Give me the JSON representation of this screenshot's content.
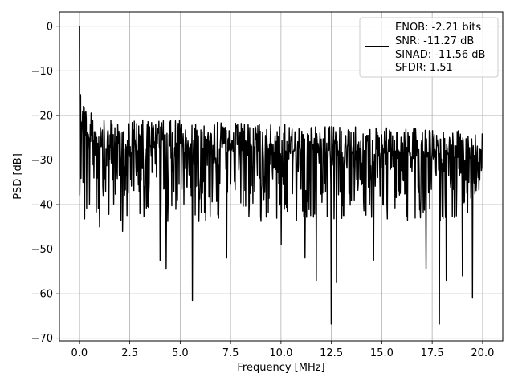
{
  "chart_data": {
    "type": "line",
    "title": "",
    "xlabel": "Frequency [MHz]",
    "ylabel": "PSD [dB]",
    "xlim": [
      -0.99,
      21.0
    ],
    "ylim": [
      -70.6,
      3.2
    ],
    "xticks": [
      0.0,
      2.5,
      5.0,
      7.5,
      10.0,
      12.5,
      15.0,
      17.5,
      20.0
    ],
    "xtick_labels": [
      "0.0",
      "2.5",
      "5.0",
      "7.5",
      "10.0",
      "12.5",
      "15.0",
      "17.5",
      "20.0"
    ],
    "yticks": [
      0,
      -10,
      -20,
      -30,
      -40,
      -50,
      -60,
      -70
    ],
    "ytick_labels": [
      "0",
      "−10",
      "−20",
      "−30",
      "−40",
      "−50",
      "−60",
      "−70"
    ],
    "grid": true,
    "line_color": "#000000",
    "legend": {
      "placement": "top-right",
      "lines": [
        "ENOB: -2.21 bits",
        "SNR: -11.27 dB",
        "SINAD: -11.56 dB",
        "SFDR: 1.51"
      ]
    },
    "series": [
      {
        "x_start": 0.0,
        "x_end": 20.0,
        "points": 1000,
        "envelope_upper_db": [
          [
            0.0,
            0.0
          ],
          [
            0.03,
            -7.0
          ],
          [
            0.1,
            -12.0
          ],
          [
            0.25,
            -16.0
          ],
          [
            0.5,
            -19.0
          ],
          [
            1.0,
            -21.0
          ],
          [
            5.0,
            -21.0
          ],
          [
            10.0,
            -22.0
          ],
          [
            20.0,
            -23.5
          ]
        ],
        "typical_low_db": -38,
        "deep_nulls": [
          [
            0.5,
            -40.0
          ],
          [
            1.0,
            -45.0
          ],
          [
            2.15,
            -46.0
          ],
          [
            4.0,
            -52.5
          ],
          [
            4.3,
            -54.5
          ],
          [
            5.6,
            -61.5
          ],
          [
            7.3,
            -52.0
          ],
          [
            10.0,
            -49.0
          ],
          [
            11.2,
            -52.0
          ],
          [
            11.75,
            -57.0
          ],
          [
            12.5,
            -66.8
          ],
          [
            12.75,
            -57.5
          ],
          [
            14.6,
            -52.5
          ],
          [
            17.2,
            -54.5
          ],
          [
            17.85,
            -66.8
          ],
          [
            18.2,
            -57.0
          ],
          [
            19.0,
            -56.0
          ],
          [
            19.5,
            -61.0
          ]
        ]
      }
    ]
  }
}
